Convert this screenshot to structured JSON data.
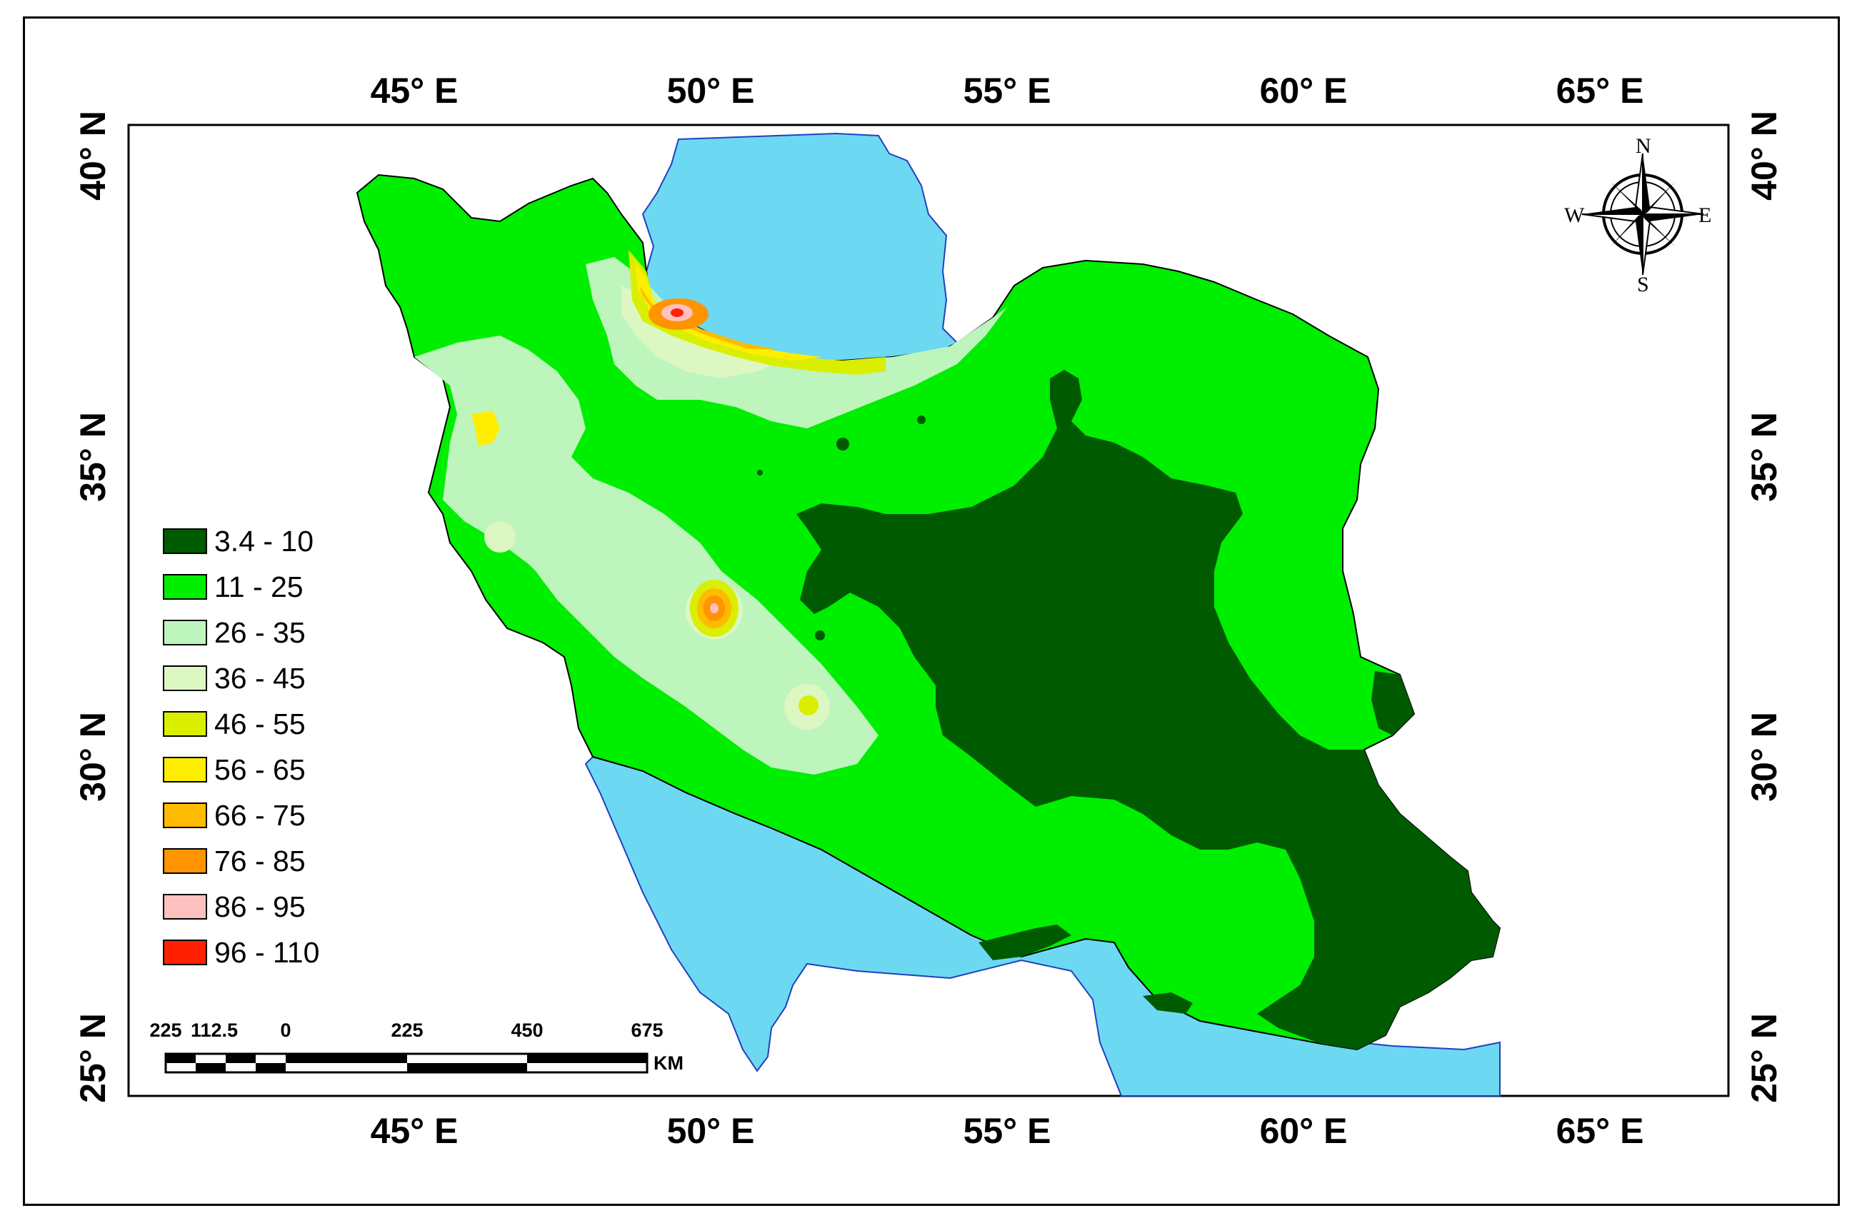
{
  "map": {
    "colors": {
      "sea": "#6dd8f2",
      "class_1": "#005a00",
      "class_2": "#00ee00",
      "class_3": "#bdf5bd",
      "class_4": "#ddf7c2",
      "class_5": "#d9ee00",
      "class_6": "#ffee00",
      "class_7": "#ffbb00",
      "class_8": "#ff9400",
      "class_9": "#ffc0c0",
      "class_10": "#ff2000"
    },
    "graticule": {
      "lon_labels_top": [
        "45° E",
        "50° E",
        "55° E",
        "60° E",
        "65° E"
      ],
      "lon_labels_bottom": [
        "45° E",
        "50° E",
        "55° E",
        "60° E",
        "65° E"
      ],
      "lat_labels_left": [
        "40° N",
        "35° N",
        "30° N",
        "25° N"
      ],
      "lat_labels_right": [
        "40° N",
        "35° N",
        "30° N",
        "25° N"
      ]
    },
    "legend": [
      {
        "label": "3.4 - 10",
        "color": "#005a00"
      },
      {
        "label": "11 - 25",
        "color": "#00ee00"
      },
      {
        "label": "26 - 35",
        "color": "#bdf5bd"
      },
      {
        "label": "36 - 45",
        "color": "#ddf7c2"
      },
      {
        "label": "46 - 55",
        "color": "#d9ee00"
      },
      {
        "label": "56 - 65",
        "color": "#ffee00"
      },
      {
        "label": "66 - 75",
        "color": "#ffbb00"
      },
      {
        "label": "76 - 85",
        "color": "#ff9400"
      },
      {
        "label": "86 - 95",
        "color": "#ffc0c0"
      },
      {
        "label": "96 - 110",
        "color": "#ff2000"
      }
    ],
    "scale_bar": {
      "labels": [
        "225",
        "112.5",
        "0",
        "225",
        "450",
        "675"
      ],
      "unit": "KM"
    },
    "north_arrow": {
      "n": "N",
      "s": "S",
      "e": "E",
      "w": "W",
      "icon": "compass-rose-icon"
    }
  }
}
